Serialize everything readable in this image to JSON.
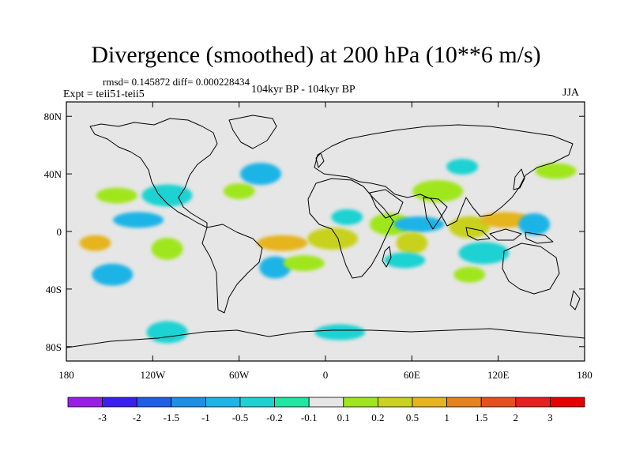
{
  "title": "Divergence (smoothed) at 200 hPa (10**6 m/s)",
  "stats": "rmsd= 0.145872 diff= 0.000228434",
  "experiment": "Expt = teii51-teii5",
  "period": "104kyr BP - 104kyr BP",
  "season": "JJA",
  "chart_data": {
    "type": "heatmap",
    "title": "Divergence (smoothed) at 200 hPa (10**6 m/s)",
    "x_ticks": [
      "180",
      "120W",
      "60W",
      "0",
      "60E",
      "120E",
      "180"
    ],
    "y_ticks": [
      "80N",
      "40N",
      "0",
      "40S",
      "80S"
    ],
    "xlim": [
      -180,
      180
    ],
    "ylim": [
      -90,
      90
    ],
    "legend_placement": "bottom",
    "colorbar": {
      "levels": [
        "-3",
        "-2",
        "-1.5",
        "-1",
        "-0.5",
        "-0.2",
        "-0.1",
        "0.1",
        "0.2",
        "0.5",
        "1",
        "1.5",
        "2",
        "3"
      ],
      "colors": [
        "#9a1fe6",
        "#3a1ff0",
        "#1f5fe6",
        "#1f8fe6",
        "#1fb4e6",
        "#1fd2d2",
        "#1fe6a0",
        "#e6e6e6",
        "#a0e61f",
        "#c8d21f",
        "#e6b41f",
        "#e6821f",
        "#e6501f",
        "#e61f1f",
        "#e60000"
      ]
    },
    "anomaly_regions": [
      {
        "lon": -160,
        "lat": -8,
        "value": 1.0
      },
      {
        "lon": -148,
        "lat": -30,
        "value": -0.5
      },
      {
        "lon": -130,
        "lat": 8,
        "value": -0.5
      },
      {
        "lon": -110,
        "lat": -12,
        "value": 0.2
      },
      {
        "lon": -145,
        "lat": 25,
        "value": 0.2
      },
      {
        "lon": -110,
        "lat": 25,
        "value": -0.2
      },
      {
        "lon": -60,
        "lat": 28,
        "value": 0.2
      },
      {
        "lon": -45,
        "lat": 40,
        "value": -0.5
      },
      {
        "lon": -30,
        "lat": -8,
        "value": 1.0
      },
      {
        "lon": -35,
        "lat": -25,
        "value": -0.5
      },
      {
        "lon": -15,
        "lat": -22,
        "value": 0.2
      },
      {
        "lon": 5,
        "lat": -5,
        "value": 0.5
      },
      {
        "lon": 15,
        "lat": 10,
        "value": -0.2
      },
      {
        "lon": 45,
        "lat": 5,
        "value": 0.2
      },
      {
        "lon": 65,
        "lat": 5,
        "value": -0.5
      },
      {
        "lon": 60,
        "lat": -8,
        "value": 0.5
      },
      {
        "lon": 55,
        "lat": -20,
        "value": -0.2
      },
      {
        "lon": 78,
        "lat": 28,
        "value": 0.2
      },
      {
        "lon": 95,
        "lat": 45,
        "value": -0.2
      },
      {
        "lon": 100,
        "lat": 3,
        "value": 0.5
      },
      {
        "lon": 125,
        "lat": 8,
        "value": 1.0
      },
      {
        "lon": 145,
        "lat": 5,
        "value": -0.5
      },
      {
        "lon": 160,
        "lat": 42,
        "value": 0.2
      },
      {
        "lon": 110,
        "lat": -15,
        "value": -0.2
      },
      {
        "lon": 100,
        "lat": -30,
        "value": 0.2
      },
      {
        "lon": -110,
        "lat": -70,
        "value": -0.2
      },
      {
        "lon": 10,
        "lat": -70,
        "value": -0.2
      }
    ]
  }
}
